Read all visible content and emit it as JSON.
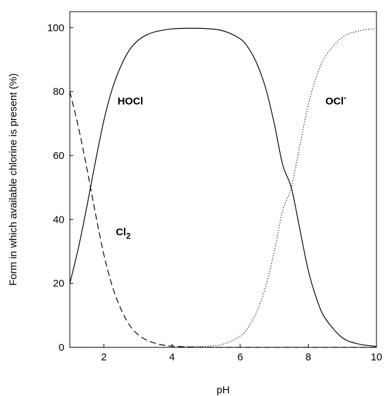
{
  "chart_data": {
    "type": "line",
    "xlabel": "pH",
    "ylabel": "Form in which available chlorine is present (%)",
    "xlim": [
      1,
      10
    ],
    "ylim": [
      0,
      105
    ],
    "xticks": [
      2,
      4,
      6,
      8,
      10
    ],
    "yticks": [
      0,
      20,
      40,
      60,
      80,
      100
    ],
    "grid": false,
    "series": [
      {
        "name": "Cl2",
        "style": "dashed",
        "x": [
          1.0,
          1.25,
          1.5,
          1.75,
          2.0,
          2.25,
          2.5,
          2.75,
          3.0,
          3.25,
          3.5,
          3.75,
          4.0,
          4.5,
          5.0,
          6.0,
          7.0,
          8.0,
          9.0,
          10.0
        ],
        "values": [
          80,
          69,
          56,
          42,
          29,
          19,
          12,
          7,
          4,
          2.3,
          1.3,
          0.7,
          0.4,
          0.1,
          0,
          0,
          0,
          0,
          0,
          0
        ]
      },
      {
        "name": "HOCl",
        "style": "solid",
        "x": [
          1.0,
          1.25,
          1.5,
          1.75,
          2.0,
          2.25,
          2.5,
          2.75,
          3.0,
          3.25,
          3.5,
          4.0,
          4.5,
          5.0,
          5.5,
          6.0,
          6.25,
          6.5,
          6.75,
          7.0,
          7.25,
          7.5,
          7.75,
          8.0,
          8.25,
          8.5,
          9.0,
          9.5,
          10.0
        ],
        "values": [
          20,
          31,
          44,
          58,
          71,
          81,
          88,
          93,
          96,
          97.7,
          98.7,
          99.6,
          99.8,
          99.7,
          99,
          96.5,
          93.5,
          88.5,
          81,
          70,
          57,
          50,
          37,
          24,
          15,
          9,
          3,
          1,
          0.3
        ]
      },
      {
        "name": "OCl-",
        "style": "dotted",
        "x": [
          1.0,
          4.0,
          4.5,
          5.0,
          5.5,
          6.0,
          6.25,
          6.5,
          6.75,
          7.0,
          7.25,
          7.5,
          7.75,
          8.0,
          8.25,
          8.5,
          9.0,
          9.5,
          10.0
        ],
        "values": [
          0,
          0,
          0.2,
          0.3,
          1,
          3.5,
          6.5,
          11.5,
          19,
          30,
          43,
          50,
          63,
          76,
          85,
          91,
          97,
          99,
          99.7
        ]
      }
    ],
    "annotations": [
      {
        "text": "HOCl",
        "x": 2.4,
        "y": 76,
        "base": "HOCl",
        "sup": "",
        "sub": ""
      },
      {
        "text": "OCl-",
        "x": 8.5,
        "y": 76,
        "base": "OCl",
        "sup": "-",
        "sub": ""
      },
      {
        "text": "Cl2",
        "x": 2.35,
        "y": 35,
        "base": "Cl",
        "sup": "",
        "sub": "2"
      }
    ]
  }
}
